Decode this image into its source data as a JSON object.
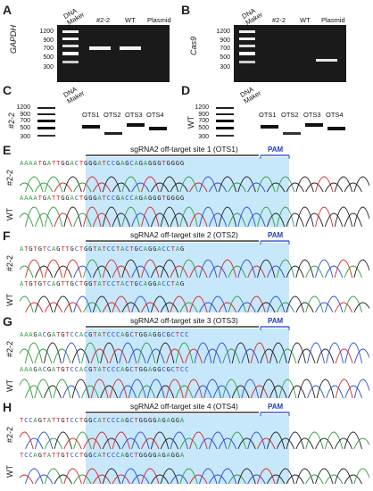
{
  "panels": {
    "A": {
      "letter": "A",
      "gene": "GAPDH",
      "lanes": [
        "#2-2",
        "WT",
        "Plasmid"
      ]
    },
    "B": {
      "letter": "B",
      "gene": "Cas9",
      "lanes": [
        "#2-2",
        "WT",
        "Plasmid"
      ]
    },
    "C": {
      "letter": "C",
      "sample": "#2-2",
      "lanes": [
        "OTS1",
        "OTS2",
        "OTS3",
        "OTS4"
      ]
    },
    "D": {
      "letter": "D",
      "sample": "WT",
      "lanes": [
        "OTS1",
        "OTS2",
        "OTS3",
        "OTS4"
      ]
    }
  },
  "marker": {
    "label1": "DNA",
    "label2": "Maker",
    "ticks": [
      "1200",
      "900",
      "700",
      "500",
      "300"
    ]
  },
  "seq_panels": [
    {
      "letter": "E",
      "title": "sgRNA2 off-target site 1 (OTS1)",
      "pam": "PAM",
      "rows": [
        {
          "sample": "#2-2",
          "seq": "AAAATGATTGGACTGGGATCCGAGCAGAGGGTGGGG"
        },
        {
          "sample": "WT",
          "seq": "AAAATGATTGGACTGGGATCCGACCAGAGGGTGGGG"
        }
      ]
    },
    {
      "letter": "F",
      "title": "sgRNA2 off-target site 2 (OTS2)",
      "pam": "PAM",
      "rows": [
        {
          "sample": "#2-2",
          "seq": "ATGTGTCAGTTGCTGGTATCCTACTGCAGGACCTAG"
        },
        {
          "sample": "WT",
          "seq": "ATGTGTCAGTTGCTGGTATCCTACTGCAGGACCTAG"
        }
      ]
    },
    {
      "letter": "G",
      "title": "sgRNA2 off-target site 3 (OTS3)",
      "pam": "PAM",
      "rows": [
        {
          "sample": "#2-2",
          "seq": "AAAGACGATGTCCACGTATCCCAGCTGGAGGCGCTCC"
        },
        {
          "sample": "WT",
          "seq": "AAAGACGATGTCCACGTATCCCAGCTGGAGGCGCTCC"
        }
      ]
    },
    {
      "letter": "H",
      "title": "sgRNA2 off-target site 4 (OTS4)",
      "pam": "PAM",
      "rows": [
        {
          "sample": "#2-2",
          "seq": "TCCAGTATTGTCCTGGCATCCCAGCTGGGGAGAGGA"
        },
        {
          "sample": "WT",
          "seq": "TCCAGTATTGTCCTGGCATCCCAGCTGGGGAGAGGA"
        }
      ]
    }
  ],
  "colors": {
    "A": "#2e9e3e",
    "C": "#2a4fd0",
    "G": "#222222",
    "T": "#d62828",
    "highlight": "#9fd4f5"
  }
}
